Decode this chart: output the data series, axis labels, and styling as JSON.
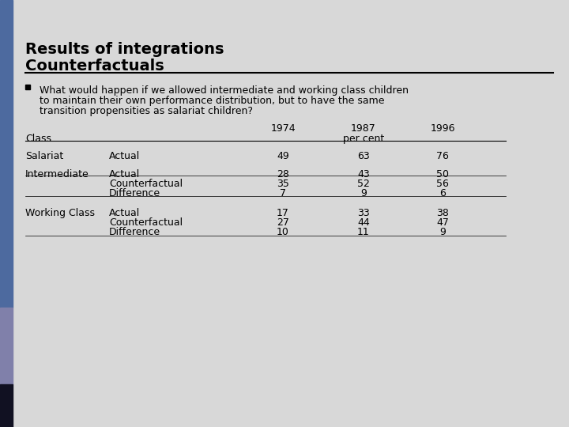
{
  "title_line1": "Results of integrations",
  "title_line2": "Counterfactuals",
  "bullet_text_lines": [
    "What would happen if we allowed intermediate and working class children",
    "to maintain their own performance distribution, but to have the same",
    "transition propensities as salariat children?"
  ],
  "bg_color": "#d8d8d8",
  "left_bar_top_color": "#5a6ea0",
  "left_bar_mid_color": "#7878aa",
  "left_bar_bot_color": "#1a1a2e",
  "table_rows": [
    {
      "class": "Salariat",
      "sub": "Actual",
      "v1974": "49",
      "v1987": "63",
      "v1996": "76"
    },
    {
      "class": "Intermediate",
      "sub": "Actual",
      "v1974": "28",
      "v1987": "43",
      "v1996": "50"
    },
    {
      "class": "",
      "sub": "Counterfactual",
      "v1974": "35",
      "v1987": "52",
      "v1996": "56"
    },
    {
      "class": "",
      "sub": "Difference",
      "v1974": "7",
      "v1987": "9",
      "v1996": "6"
    },
    {
      "class": "Working Class",
      "sub": "Actual",
      "v1974": "17",
      "v1987": "33",
      "v1996": "38"
    },
    {
      "class": "",
      "sub": "Counterfactual",
      "v1974": "27",
      "v1987": "44",
      "v1996": "47"
    },
    {
      "class": "",
      "sub": "Difference",
      "v1974": "10",
      "v1987": "11",
      "v1996": "9"
    }
  ],
  "title_fontsize": 14,
  "body_fontsize": 9,
  "table_fontsize": 9
}
